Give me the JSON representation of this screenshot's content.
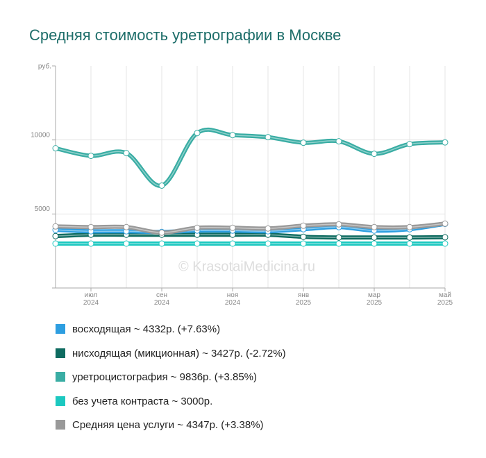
{
  "chart_data": {
    "type": "line",
    "title": "Средняя стоимость уретрографии в Москве",
    "y_unit": "руб.",
    "watermark": "© KrasotaiMedicina.ru",
    "categories": [
      null,
      "июл 2024",
      null,
      "сен 2024",
      null,
      "ноя 2024",
      null,
      "янв 2025",
      null,
      "мар 2025",
      null,
      "май 2025"
    ],
    "ylim": [
      0,
      15000
    ],
    "yticks": [
      5000,
      10000
    ],
    "grid": true,
    "series": [
      {
        "name": "восходящая ~ 4332р. (+7.63%)",
        "color": "#2d9ee0",
        "values": [
          3925,
          3832,
          3832,
          3785,
          3879,
          3879,
          3832,
          3972,
          4112,
          3879,
          3972,
          4332
        ]
      },
      {
        "name": "нисходящая (микционная) ~ 3427р. (-2.72%)",
        "color": "#0e6b60",
        "values": [
          3505,
          3598,
          3598,
          3598,
          3598,
          3598,
          3598,
          3458,
          3411,
          3411,
          3411,
          3427
        ]
      },
      {
        "name": "уретроцистография ~ 9836р. (+3.85%)",
        "color": "#3aada4",
        "values": [
          9439,
          8925,
          9112,
          6916,
          10467,
          10327,
          10187,
          9813,
          9907,
          9065,
          9720,
          9836
        ]
      },
      {
        "name": "без учета контраста ~ 3000р.",
        "color": "#1cc8c0",
        "values": [
          3000,
          3000,
          3000,
          3000,
          3000,
          3000,
          3000,
          3000,
          3000,
          3000,
          3000,
          3000
        ]
      },
      {
        "name": "Средняя цена услуги ~ 4347р. (+3.38%)",
        "color": "#999999",
        "values": [
          4159,
          4112,
          4112,
          3738,
          4065,
          4065,
          4019,
          4206,
          4299,
          4112,
          4112,
          4347
        ]
      }
    ]
  }
}
